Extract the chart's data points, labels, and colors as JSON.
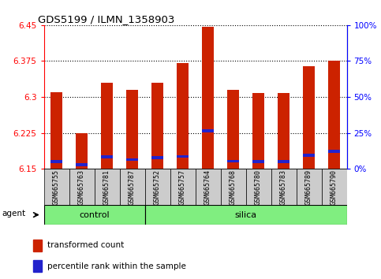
{
  "title": "GDS5199 / ILMN_1358903",
  "samples": [
    "GSM665755",
    "GSM665763",
    "GSM665781",
    "GSM665787",
    "GSM665752",
    "GSM665757",
    "GSM665764",
    "GSM665768",
    "GSM665780",
    "GSM665783",
    "GSM665789",
    "GSM665790"
  ],
  "groups": [
    "control",
    "control",
    "control",
    "control",
    "silica",
    "silica",
    "silica",
    "silica",
    "silica",
    "silica",
    "silica",
    "silica"
  ],
  "red_values": [
    6.31,
    6.225,
    6.33,
    6.315,
    6.33,
    6.37,
    6.447,
    6.315,
    6.308,
    6.308,
    6.365,
    6.375
  ],
  "blue_values": [
    6.162,
    6.156,
    6.172,
    6.166,
    6.17,
    6.173,
    6.226,
    6.163,
    6.162,
    6.162,
    6.175,
    6.183
  ],
  "y_min": 6.15,
  "y_max": 6.45,
  "y_ticks_left": [
    6.15,
    6.225,
    6.3,
    6.375,
    6.45
  ],
  "y_ticks_right": [
    0,
    25,
    50,
    75,
    100
  ],
  "bar_color": "#cc2200",
  "blue_color": "#2222cc",
  "control_color": "#80ee80",
  "silica_color": "#80ee80",
  "label_bg_color": "#cccccc",
  "agent_label": "agent",
  "control_label": "control",
  "silica_label": "silica",
  "legend_red": "transformed count",
  "legend_blue": "percentile rank within the sample",
  "bar_width": 0.45,
  "blue_bar_height": 0.006
}
